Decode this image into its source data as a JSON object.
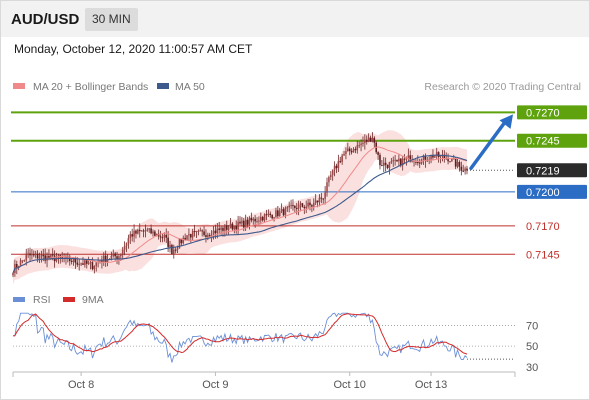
{
  "header": {
    "pair": "AUD/USD",
    "timeframe": "30 MIN"
  },
  "timestamp": "Monday, October 12, 2020 11:00:57 AM CET",
  "colors": {
    "support": "#2b6cc4",
    "resistance": "#5ea30e",
    "current": "#2b2b2b",
    "red_level": "#c0302b",
    "ma20": "#f08a8a",
    "ma50": "#3d5a8c",
    "bollinger_fill": "#fadada",
    "rsi": "#6b8fd6",
    "rsi_ma": "#d42a2a",
    "bull": "#7a2b2b",
    "bear": "#7a2b2b"
  },
  "chart_data": [
    {
      "type": "candlestick",
      "legend": [
        {
          "label": "MA 20 + Bollinger Bands",
          "color": "#f08a8a"
        },
        {
          "label": "MA 50",
          "color": "#3d5a8c"
        }
      ],
      "credit": "Research © 2020 Trading Central",
      "ylim": [
        0.7125,
        0.728
      ],
      "x_ticks": [
        {
          "label": "Oct 8",
          "index": 36
        },
        {
          "label": "Oct 9",
          "index": 107
        },
        {
          "label": "Oct 10",
          "index": 178
        },
        {
          "label": "Oct 13",
          "index": 221
        }
      ],
      "levels": [
        {
          "value": 0.727,
          "label": "0.7270",
          "kind": "resistance"
        },
        {
          "value": 0.7245,
          "label": "0.7245",
          "kind": "resistance"
        },
        {
          "value": 0.7219,
          "label": "0.7219",
          "kind": "current"
        },
        {
          "value": 0.72,
          "label": "0.7200",
          "kind": "support"
        },
        {
          "value": 0.717,
          "label": "0.7170",
          "kind": "red"
        },
        {
          "value": 0.7145,
          "label": "0.7145",
          "kind": "red"
        }
      ],
      "close_anchors": [
        [
          0,
          0.7132
        ],
        [
          8,
          0.7144
        ],
        [
          20,
          0.7142
        ],
        [
          30,
          0.714
        ],
        [
          42,
          0.7135
        ],
        [
          46,
          0.714
        ],
        [
          56,
          0.7144
        ],
        [
          62,
          0.7162
        ],
        [
          70,
          0.7166
        ],
        [
          80,
          0.716
        ],
        [
          84,
          0.7148
        ],
        [
          92,
          0.7162
        ],
        [
          104,
          0.7164
        ],
        [
          112,
          0.7168
        ],
        [
          122,
          0.7172
        ],
        [
          132,
          0.7178
        ],
        [
          142,
          0.7182
        ],
        [
          150,
          0.7187
        ],
        [
          158,
          0.7188
        ],
        [
          164,
          0.7196
        ],
        [
          168,
          0.7214
        ],
        [
          174,
          0.7232
        ],
        [
          182,
          0.724
        ],
        [
          188,
          0.7246
        ],
        [
          190,
          0.7249
        ],
        [
          194,
          0.7225
        ],
        [
          198,
          0.7224
        ],
        [
          204,
          0.7226
        ],
        [
          210,
          0.723
        ],
        [
          216,
          0.7228
        ],
        [
          222,
          0.7232
        ],
        [
          230,
          0.723
        ],
        [
          236,
          0.7222
        ],
        [
          240,
          0.7219
        ]
      ],
      "forecast": {
        "from": 0.7219,
        "to": 0.727
      }
    },
    {
      "type": "line",
      "indicator": "RSI",
      "legend": [
        {
          "label": "RSI",
          "color": "#6b8fd6"
        },
        {
          "label": "9MA",
          "color": "#d42a2a"
        }
      ],
      "ylim": [
        22,
        88
      ],
      "y_ticks": [
        70,
        50,
        30
      ]
    }
  ]
}
